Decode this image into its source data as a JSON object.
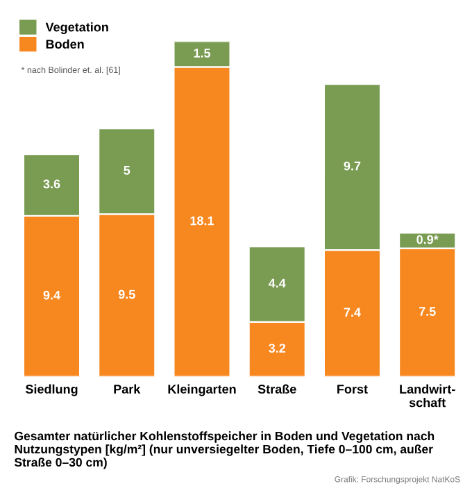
{
  "chart_data": {
    "type": "bar",
    "stacked": true,
    "categories": [
      "Siedlung",
      "Park",
      "Kleingarten",
      "Straße",
      "Forst",
      "Landwirt-\nschaft"
    ],
    "series": [
      {
        "name": "Boden",
        "color": "#f7871f",
        "values": [
          9.4,
          9.5,
          18.1,
          3.2,
          7.4,
          7.5
        ],
        "value_labels": [
          "9.4",
          "9.5",
          "18.1",
          "3.2",
          "7.4",
          "7.5"
        ]
      },
      {
        "name": "Vegetation",
        "color": "#7a9b52",
        "values": [
          3.6,
          5,
          1.5,
          4.4,
          9.7,
          0.9
        ],
        "value_labels": [
          "3.6",
          "5",
          "1.5",
          "4.4",
          "9.7",
          "0.9*"
        ]
      }
    ],
    "legend": "top left",
    "annotations": [
      "* nach Bolinder et. al. [61]",
      "Gesamter natürlicher Kohlenstoffspeicher in Boden und Vegetation nach Nutzungstypen [kg/m²] (nur unversiegelter Boden, Tiefe 0–100 cm, außer Straße 0–30 cm)",
      "Grafik: Forschungsprojekt NatKoS"
    ]
  }
}
